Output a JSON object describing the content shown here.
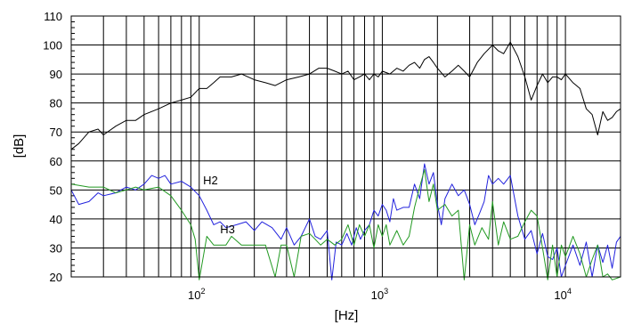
{
  "chart_data": {
    "type": "line",
    "title": "",
    "xlabel": "[Hz]",
    "ylabel": "[dB]",
    "xscale": "log",
    "xlim": [
      20,
      20000
    ],
    "ylim": [
      20,
      110
    ],
    "yticks": [
      20,
      30,
      40,
      50,
      60,
      70,
      80,
      90,
      100,
      110
    ],
    "xtick_labels": [
      {
        "value": 100,
        "base": "10",
        "exp": "2"
      },
      {
        "value": 1000,
        "base": "10",
        "exp": "3"
      },
      {
        "value": 10000,
        "base": "10",
        "exp": "4"
      }
    ],
    "grid": true,
    "series": [
      {
        "name": "",
        "color": "#000000",
        "points": [
          [
            20,
            64
          ],
          [
            22,
            66
          ],
          [
            25,
            70
          ],
          [
            28,
            71
          ],
          [
            30,
            69
          ],
          [
            35,
            72
          ],
          [
            40,
            74
          ],
          [
            45,
            74
          ],
          [
            50,
            76
          ],
          [
            60,
            78
          ],
          [
            70,
            80
          ],
          [
            80,
            81
          ],
          [
            90,
            82
          ],
          [
            100,
            85
          ],
          [
            110,
            85
          ],
          [
            120,
            87
          ],
          [
            130,
            89
          ],
          [
            150,
            89
          ],
          [
            170,
            90
          ],
          [
            200,
            88
          ],
          [
            230,
            87
          ],
          [
            260,
            86
          ],
          [
            300,
            88
          ],
          [
            350,
            89
          ],
          [
            400,
            90
          ],
          [
            450,
            92
          ],
          [
            500,
            92
          ],
          [
            550,
            91
          ],
          [
            600,
            90
          ],
          [
            650,
            91
          ],
          [
            700,
            88
          ],
          [
            750,
            89
          ],
          [
            800,
            90
          ],
          [
            850,
            88
          ],
          [
            900,
            90
          ],
          [
            950,
            89
          ],
          [
            1000,
            91
          ],
          [
            1100,
            90
          ],
          [
            1200,
            92
          ],
          [
            1300,
            91
          ],
          [
            1400,
            93
          ],
          [
            1500,
            94
          ],
          [
            1600,
            92
          ],
          [
            1700,
            95
          ],
          [
            1800,
            96
          ],
          [
            1900,
            94
          ],
          [
            2000,
            92
          ],
          [
            2200,
            89
          ],
          [
            2400,
            91
          ],
          [
            2600,
            93
          ],
          [
            2800,
            91
          ],
          [
            3000,
            89
          ],
          [
            3300,
            94
          ],
          [
            3600,
            97
          ],
          [
            4000,
            100
          ],
          [
            4300,
            98
          ],
          [
            4600,
            97
          ],
          [
            5000,
            101
          ],
          [
            5500,
            96
          ],
          [
            6000,
            89
          ],
          [
            6500,
            81
          ],
          [
            7000,
            86
          ],
          [
            7500,
            90
          ],
          [
            8000,
            87
          ],
          [
            8500,
            89
          ],
          [
            9000,
            89
          ],
          [
            9500,
            88
          ],
          [
            10000,
            90
          ],
          [
            11000,
            87
          ],
          [
            12000,
            85
          ],
          [
            13000,
            78
          ],
          [
            14000,
            76
          ],
          [
            15000,
            69
          ],
          [
            16000,
            77
          ],
          [
            17000,
            74
          ],
          [
            18000,
            75
          ],
          [
            19000,
            77
          ],
          [
            20000,
            78
          ]
        ]
      },
      {
        "name": "H2",
        "color": "#2222dd",
        "points": [
          [
            20,
            50
          ],
          [
            22,
            45
          ],
          [
            25,
            46
          ],
          [
            28,
            49
          ],
          [
            30,
            48
          ],
          [
            35,
            49
          ],
          [
            40,
            51
          ],
          [
            45,
            50
          ],
          [
            50,
            52
          ],
          [
            55,
            55
          ],
          [
            60,
            54
          ],
          [
            65,
            55
          ],
          [
            70,
            52
          ],
          [
            80,
            53
          ],
          [
            90,
            51
          ],
          [
            100,
            48
          ],
          [
            110,
            43
          ],
          [
            120,
            38
          ],
          [
            130,
            39
          ],
          [
            140,
            37
          ],
          [
            160,
            38
          ],
          [
            180,
            39
          ],
          [
            200,
            36
          ],
          [
            220,
            39
          ],
          [
            250,
            37
          ],
          [
            280,
            33
          ],
          [
            300,
            37
          ],
          [
            330,
            31
          ],
          [
            360,
            34
          ],
          [
            400,
            40
          ],
          [
            430,
            34
          ],
          [
            460,
            33
          ],
          [
            500,
            36
          ],
          [
            530,
            19
          ],
          [
            560,
            32
          ],
          [
            600,
            31
          ],
          [
            640,
            35
          ],
          [
            680,
            31
          ],
          [
            720,
            37
          ],
          [
            760,
            33
          ],
          [
            800,
            36
          ],
          [
            850,
            38
          ],
          [
            900,
            43
          ],
          [
            950,
            41
          ],
          [
            1000,
            45
          ],
          [
            1050,
            43
          ],
          [
            1100,
            39
          ],
          [
            1150,
            47
          ],
          [
            1200,
            43
          ],
          [
            1300,
            44
          ],
          [
            1400,
            44
          ],
          [
            1500,
            52
          ],
          [
            1600,
            47
          ],
          [
            1700,
            59
          ],
          [
            1800,
            52
          ],
          [
            1900,
            56
          ],
          [
            2000,
            45
          ],
          [
            2100,
            38
          ],
          [
            2200,
            47
          ],
          [
            2400,
            52
          ],
          [
            2600,
            48
          ],
          [
            2800,
            50
          ],
          [
            3000,
            45
          ],
          [
            3200,
            38
          ],
          [
            3400,
            42
          ],
          [
            3600,
            46
          ],
          [
            3800,
            55
          ],
          [
            4000,
            52
          ],
          [
            4300,
            54
          ],
          [
            4600,
            52
          ],
          [
            5000,
            55
          ],
          [
            5500,
            41
          ],
          [
            6000,
            33
          ],
          [
            6500,
            36
          ],
          [
            7000,
            28
          ],
          [
            7500,
            35
          ],
          [
            8000,
            27
          ],
          [
            8500,
            26
          ],
          [
            9000,
            30
          ],
          [
            9500,
            20
          ],
          [
            10000,
            24
          ],
          [
            11000,
            31
          ],
          [
            12000,
            24
          ],
          [
            13000,
            32
          ],
          [
            14000,
            20
          ],
          [
            15000,
            31
          ],
          [
            16000,
            25
          ],
          [
            17000,
            31
          ],
          [
            18000,
            23
          ],
          [
            19000,
            32
          ],
          [
            20000,
            34
          ]
        ]
      },
      {
        "name": "H3",
        "color": "#229922",
        "points": [
          [
            20,
            52
          ],
          [
            25,
            51
          ],
          [
            30,
            51
          ],
          [
            35,
            49
          ],
          [
            40,
            50
          ],
          [
            45,
            51
          ],
          [
            50,
            50
          ],
          [
            60,
            51
          ],
          [
            70,
            48
          ],
          [
            80,
            43
          ],
          [
            90,
            38
          ],
          [
            95,
            33
          ],
          [
            100,
            19
          ],
          [
            110,
            34
          ],
          [
            120,
            31
          ],
          [
            130,
            31
          ],
          [
            140,
            31
          ],
          [
            150,
            34
          ],
          [
            170,
            31
          ],
          [
            200,
            31
          ],
          [
            230,
            31
          ],
          [
            260,
            20
          ],
          [
            280,
            31
          ],
          [
            300,
            31
          ],
          [
            330,
            20
          ],
          [
            360,
            34
          ],
          [
            400,
            35
          ],
          [
            430,
            33
          ],
          [
            460,
            31
          ],
          [
            500,
            33
          ],
          [
            550,
            31
          ],
          [
            600,
            33
          ],
          [
            650,
            38
          ],
          [
            700,
            31
          ],
          [
            750,
            38
          ],
          [
            800,
            34
          ],
          [
            850,
            38
          ],
          [
            900,
            30
          ],
          [
            950,
            38
          ],
          [
            1000,
            34
          ],
          [
            1050,
            38
          ],
          [
            1100,
            31
          ],
          [
            1200,
            36
          ],
          [
            1300,
            31
          ],
          [
            1400,
            34
          ],
          [
            1500,
            44
          ],
          [
            1600,
            51
          ],
          [
            1700,
            57
          ],
          [
            1800,
            46
          ],
          [
            1900,
            52
          ],
          [
            2000,
            43
          ],
          [
            2200,
            45
          ],
          [
            2400,
            41
          ],
          [
            2600,
            43
          ],
          [
            2800,
            19
          ],
          [
            3000,
            38
          ],
          [
            3200,
            31
          ],
          [
            3500,
            37
          ],
          [
            3800,
            33
          ],
          [
            4000,
            46
          ],
          [
            4300,
            31
          ],
          [
            4600,
            39
          ],
          [
            5000,
            33
          ],
          [
            5500,
            34
          ],
          [
            6000,
            39
          ],
          [
            6500,
            43
          ],
          [
            7000,
            41
          ],
          [
            7500,
            30
          ],
          [
            8000,
            19
          ],
          [
            8500,
            31
          ],
          [
            9000,
            20
          ],
          [
            9500,
            31
          ],
          [
            10000,
            27
          ],
          [
            11000,
            34
          ],
          [
            12000,
            28
          ],
          [
            13000,
            20
          ],
          [
            14000,
            26
          ],
          [
            15000,
            31
          ],
          [
            16000,
            20
          ],
          [
            17000,
            21
          ],
          [
            18000,
            19
          ],
          [
            20000,
            20
          ]
        ]
      }
    ],
    "annotations": [
      {
        "text": "H2",
        "x": 105,
        "y": 52
      },
      {
        "text": "H3",
        "x": 130,
        "y": 35
      }
    ]
  }
}
